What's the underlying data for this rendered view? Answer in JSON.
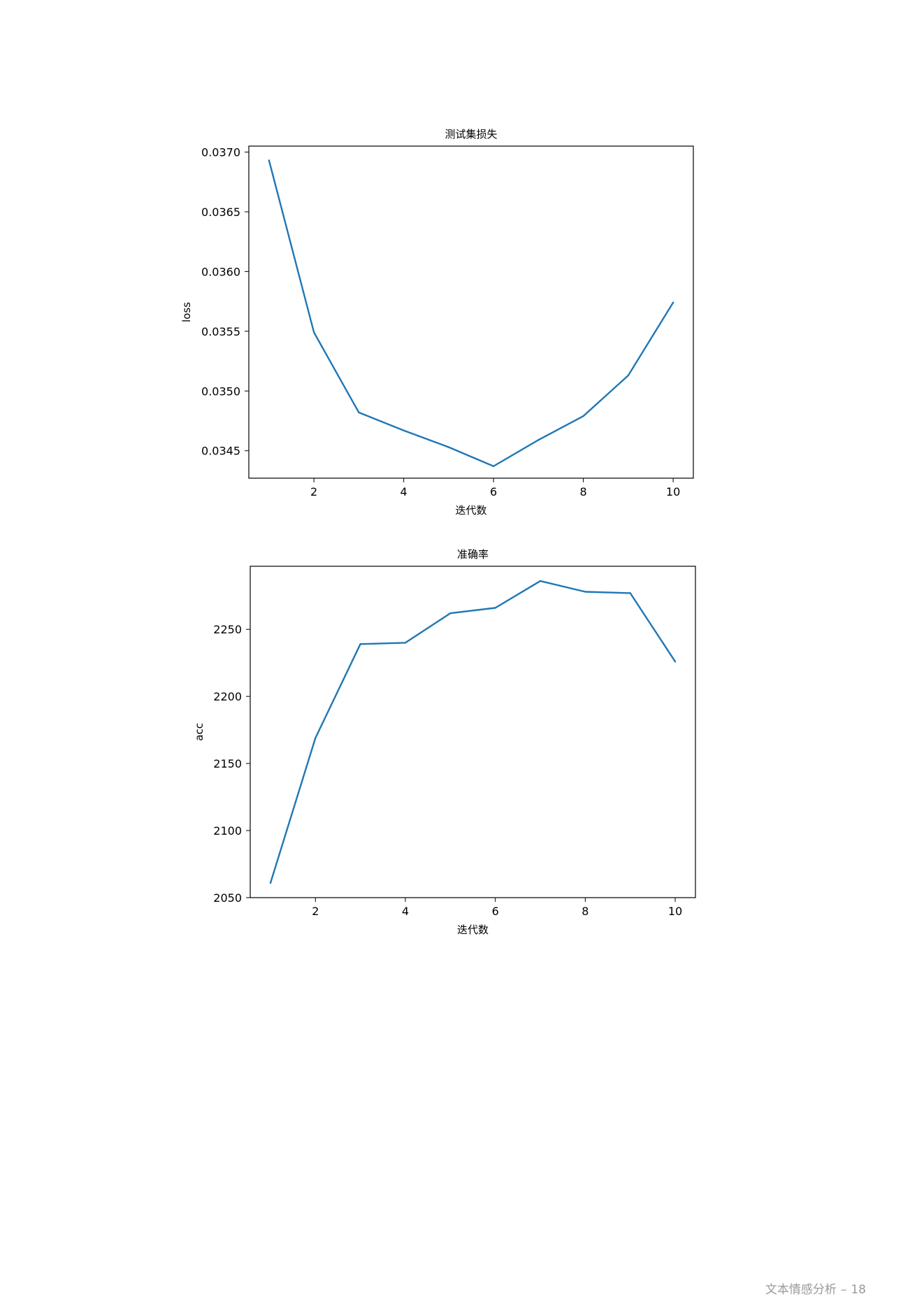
{
  "chart_data": [
    {
      "type": "line",
      "title": "测试集损失",
      "xlabel": "迭代数",
      "ylabel": "loss",
      "xlim": [
        0.55,
        10.45
      ],
      "ylim": [
        0.03427,
        0.03705
      ],
      "xticks": [
        2,
        4,
        6,
        8,
        10
      ],
      "xtick_labels": [
        "2",
        "4",
        "6",
        "8",
        "10"
      ],
      "yticks": [
        0.0345,
        0.035,
        0.0355,
        0.036,
        0.0365,
        0.037
      ],
      "ytick_labels": [
        "0.0345",
        "0.0350",
        "0.0355",
        "0.0360",
        "0.0365",
        "0.0370"
      ],
      "grid": false,
      "color": "#1f77b4",
      "x": [
        1,
        2,
        3,
        4,
        5,
        6,
        7,
        8,
        9,
        10
      ],
      "y": [
        0.03693,
        0.03549,
        0.03482,
        0.03467,
        0.03453,
        0.03437,
        0.03459,
        0.03479,
        0.03513,
        0.03574
      ]
    },
    {
      "type": "line",
      "title": "准确率",
      "xlabel": "迭代数",
      "ylabel": "acc",
      "xlim": [
        0.55,
        10.45
      ],
      "ylim": [
        2050,
        2297
      ],
      "xticks": [
        2,
        4,
        6,
        8,
        10
      ],
      "xtick_labels": [
        "2",
        "4",
        "6",
        "8",
        "10"
      ],
      "yticks": [
        2050,
        2100,
        2150,
        2200,
        2250
      ],
      "ytick_labels": [
        "2050",
        "2100",
        "2150",
        "2200",
        "2250"
      ],
      "grid": false,
      "color": "#1f77b4",
      "x": [
        1,
        2,
        3,
        4,
        5,
        6,
        7,
        8,
        9,
        10
      ],
      "y": [
        2061,
        2169,
        2239,
        2240,
        2262,
        2266,
        2286,
        2278,
        2277,
        2226
      ]
    }
  ],
  "footer": {
    "doc_title": "文本情感分析",
    "separator": "–",
    "page_number": "18"
  }
}
